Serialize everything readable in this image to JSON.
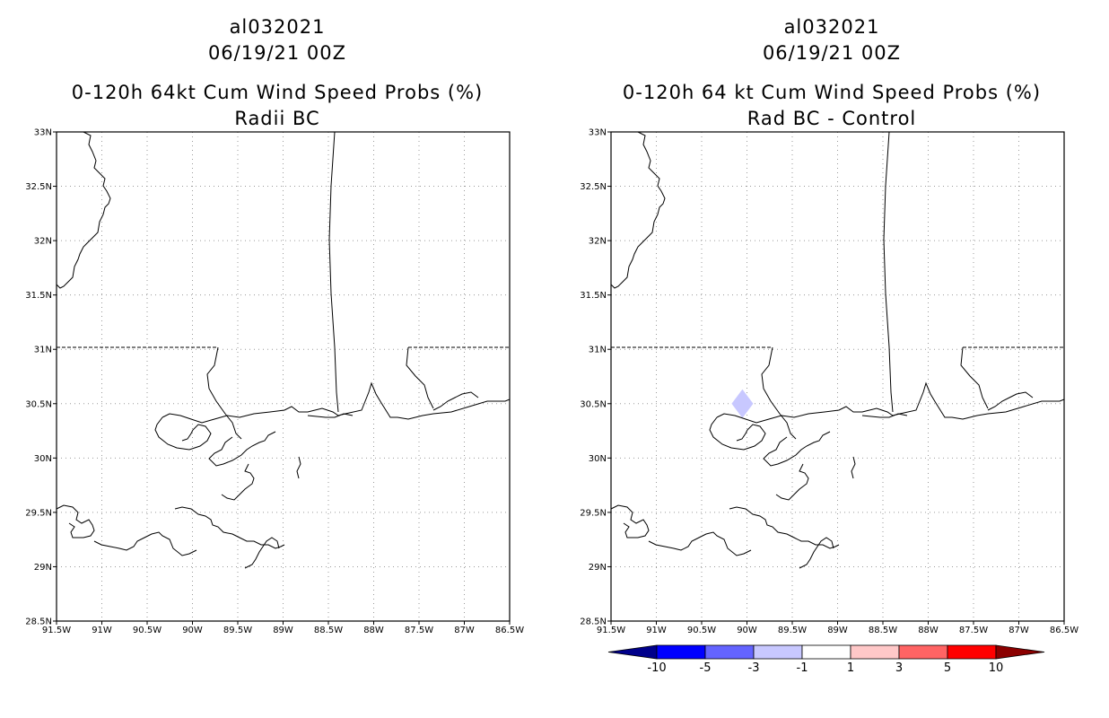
{
  "left": {
    "title_line1": "al032021",
    "title_line2": "06/19/21 00Z",
    "title_line3": "0-120h 64kt Cum Wind Speed Probs (%)",
    "title_line4": "Radii BC"
  },
  "right": {
    "title_line1": "al032021",
    "title_line2": "06/19/21 00Z",
    "title_line3": "0-120h 64 kt Cum Wind Speed Probs (%)",
    "title_line4": "Rad BC - Control"
  },
  "axes": {
    "lat_labels": [
      "33N",
      "32.5N",
      "32N",
      "31.5N",
      "31N",
      "30.5N",
      "30N",
      "29.5N",
      "29N",
      "28.5N"
    ],
    "lon_labels": [
      "91.5W",
      "91W",
      "90.5W",
      "90W",
      "89.5W",
      "89W",
      "88.5W",
      "88W",
      "87.5W",
      "87W",
      "86.5W"
    ],
    "lat_range": [
      28.5,
      33.0
    ],
    "lon_range": [
      -91.5,
      -86.5
    ]
  },
  "colorbar": {
    "labels": [
      "-10",
      "-5",
      "-3",
      "-1",
      "1",
      "3",
      "5",
      "10"
    ],
    "colors": [
      "#00008b",
      "#0000ff",
      "#6464ff",
      "#c8c8ff",
      "#ffffff",
      "#ffc8c8",
      "#ff6464",
      "#ff0000",
      "#8b0000"
    ]
  },
  "anomaly": {
    "lon": -90.05,
    "lat": 30.5,
    "value_class": "-3 to -1",
    "color": "#c8c8ff"
  }
}
